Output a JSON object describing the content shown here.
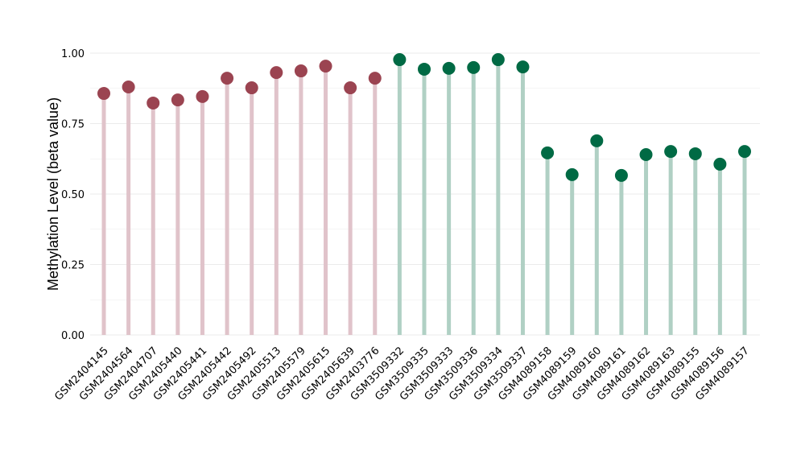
{
  "chart_data": {
    "type": "lollipop",
    "title": "",
    "xlabel": "",
    "ylabel": "Methylation Level (beta value)",
    "ylim": [
      0,
      1
    ],
    "yticks": [
      "0.00",
      "0.25",
      "0.50",
      "0.75",
      "1.00"
    ],
    "grid": true,
    "categories": [
      "GSM2404145",
      "GSM2404564",
      "GSM2404707",
      "GSM2405440",
      "GSM2405441",
      "GSM2405442",
      "GSM2405492",
      "GSM2405513",
      "GSM2405579",
      "GSM2405615",
      "GSM2405639",
      "GSM2403776",
      "GSM3509332",
      "GSM3509335",
      "GSM3509333",
      "GSM3509336",
      "GSM3509334",
      "GSM3509337",
      "GSM4089158",
      "GSM4089159",
      "GSM4089160",
      "GSM4089161",
      "GSM4089162",
      "GSM4089163",
      "GSM4089155",
      "GSM4089156",
      "GSM4089157"
    ],
    "values": [
      0.857,
      0.88,
      0.823,
      0.834,
      0.846,
      0.911,
      0.877,
      0.931,
      0.937,
      0.954,
      0.877,
      0.911,
      0.977,
      0.943,
      0.946,
      0.949,
      0.977,
      0.951,
      0.646,
      0.569,
      0.689,
      0.566,
      0.64,
      0.651,
      0.643,
      0.606,
      0.651
    ],
    "groups": [
      0,
      0,
      0,
      0,
      0,
      0,
      0,
      0,
      0,
      0,
      0,
      0,
      1,
      1,
      1,
      1,
      1,
      1,
      2,
      2,
      2,
      2,
      2,
      2,
      2,
      2,
      2
    ],
    "group_colors": {
      "0": {
        "point": "#9b4451",
        "stem": "#e0c3ca"
      },
      "1": {
        "point": "#006a44",
        "stem": "#b0d0c4"
      },
      "2": {
        "point": "#006a44",
        "stem": "#b0d0c4"
      }
    }
  }
}
